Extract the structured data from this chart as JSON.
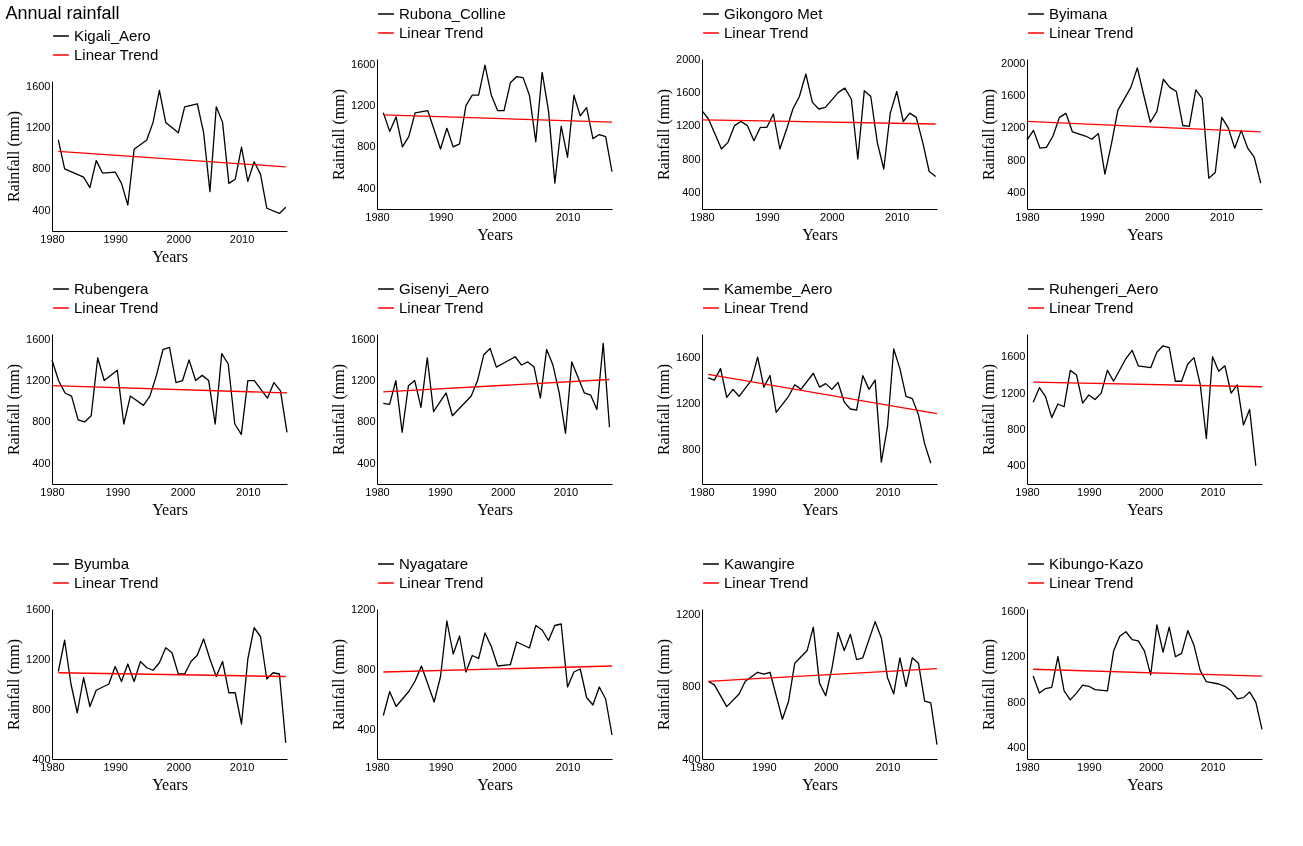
{
  "chart_data": [
    {
      "type": "line",
      "title": "Annual rainfall",
      "xlabel": "Years",
      "ylabel": "Rainfall (mm)",
      "xlim": [
        1980,
        2017.2
      ],
      "xticks": [
        1980,
        1990,
        2000,
        2010
      ],
      "ylim": [
        200,
        1650
      ],
      "yticks": [
        400,
        800,
        1200,
        1600
      ],
      "legend": "top",
      "series": [
        {
          "name": "Kigali_Aero",
          "color": "#000000",
          "x": [
            1981,
            1982,
            1985,
            1986,
            1987,
            1988,
            1990,
            1991,
            1992,
            1993,
            1995,
            1996,
            1997,
            1998,
            2000,
            2001,
            2003,
            2004,
            2005,
            2006,
            2007,
            2008,
            2009,
            2010,
            2011,
            2012,
            2013,
            2014,
            2016,
            2017
          ],
          "values": [
            1080,
            800,
            720,
            620,
            880,
            760,
            770,
            660,
            450,
            990,
            1080,
            1250,
            1560,
            1250,
            1150,
            1400,
            1430,
            1150,
            580,
            1400,
            1250,
            660,
            700,
            1010,
            680,
            870,
            750,
            420,
            370,
            430
          ]
        },
        {
          "name": "Linear Trend",
          "color": "#ff0000",
          "x": [
            1981,
            2017
          ],
          "values": [
            970,
            820
          ]
        }
      ]
    },
    {
      "type": "line",
      "xlabel": "Years",
      "ylabel": "Rainfall (mm)",
      "xlim": [
        1980,
        2017
      ],
      "xticks": [
        1980,
        1990,
        2000,
        2010
      ],
      "ylim": [
        200,
        1650
      ],
      "yticks": [
        400,
        800,
        1200,
        1600
      ],
      "legend": "top",
      "series": [
        {
          "name": "Rubona_Colline",
          "color": "#000000",
          "x": [
            1981,
            1982,
            1983,
            1984,
            1985,
            1986,
            1988,
            1990,
            1991,
            1992,
            1993,
            1994,
            1995,
            1996,
            1997,
            1998,
            1999,
            2000,
            2001,
            2002,
            2003,
            2004,
            2005,
            2006,
            2007,
            2008,
            2009,
            2010,
            2011,
            2012,
            2013,
            2014,
            2015,
            2016,
            2017
          ],
          "values": [
            1130,
            950,
            1090,
            800,
            900,
            1130,
            1150,
            780,
            980,
            800,
            830,
            1200,
            1300,
            1300,
            1590,
            1300,
            1150,
            1150,
            1420,
            1480,
            1470,
            1300,
            850,
            1520,
            1150,
            450,
            1000,
            700,
            1300,
            1100,
            1180,
            880,
            920,
            900,
            560
          ]
        },
        {
          "name": "Linear Trend",
          "color": "#ff0000",
          "x": [
            1981,
            2017
          ],
          "values": [
            1110,
            1040
          ]
        }
      ]
    },
    {
      "type": "line",
      "xlabel": "Years",
      "ylabel": "Rainfall (mm)",
      "xlim": [
        1980,
        2016.2
      ],
      "xticks": [
        1980,
        1990,
        2000,
        2010
      ],
      "ylim": [
        200,
        2000
      ],
      "yticks": [
        400,
        800,
        1200,
        1600,
        2000
      ],
      "legend": "top",
      "series": [
        {
          "name": "Gikongoro Met",
          "color": "#000000",
          "x": [
            1980,
            1981,
            1983,
            1984,
            1985,
            1986,
            1987,
            1988,
            1989,
            1990,
            1991,
            1992,
            1993,
            1994,
            1995,
            1996,
            1997,
            1998,
            1999,
            2001,
            2002,
            2003,
            2004,
            2005,
            2006,
            2007,
            2008,
            2009,
            2010,
            2011,
            2012,
            2013,
            2014,
            2015,
            2016
          ],
          "values": [
            1380,
            1280,
            920,
            1000,
            1200,
            1250,
            1200,
            1020,
            1180,
            1180,
            1340,
            920,
            1150,
            1400,
            1550,
            1820,
            1480,
            1400,
            1420,
            1600,
            1650,
            1520,
            800,
            1620,
            1550,
            1000,
            680,
            1350,
            1610,
            1250,
            1350,
            1300,
            1000,
            650,
            590
          ]
        },
        {
          "name": "Linear Trend",
          "color": "#ff0000",
          "x": [
            1980,
            2016
          ],
          "values": [
            1270,
            1220
          ]
        }
      ]
    },
    {
      "type": "line",
      "xlabel": "Years",
      "ylabel": "Rainfall (mm)",
      "xlim": [
        1980,
        2016.2
      ],
      "xticks": [
        1980,
        1990,
        2000,
        2010
      ],
      "ylim": [
        200,
        2050
      ],
      "yticks": [
        400,
        800,
        1200,
        1600,
        2000
      ],
      "legend": "top",
      "series": [
        {
          "name": "Byimana",
          "color": "#000000",
          "x": [
            1980,
            1981,
            1982,
            1983,
            1984,
            1985,
            1986,
            1987,
            1989,
            1990,
            1991,
            1992,
            1993,
            1994,
            1996,
            1997,
            1998,
            1999,
            2000,
            2001,
            2002,
            2003,
            2004,
            2005,
            2006,
            2007,
            2008,
            2009,
            2010,
            2011,
            2012,
            2013,
            2014,
            2015,
            2016
          ],
          "values": [
            1050,
            1170,
            950,
            960,
            1100,
            1330,
            1380,
            1150,
            1100,
            1060,
            1130,
            630,
            1000,
            1420,
            1700,
            1940,
            1600,
            1270,
            1400,
            1800,
            1700,
            1650,
            1230,
            1220,
            1670,
            1560,
            580,
            650,
            1330,
            1200,
            950,
            1170,
            950,
            840,
            520
          ]
        },
        {
          "name": "Linear Trend",
          "color": "#ff0000",
          "x": [
            1980,
            2016
          ],
          "values": [
            1280,
            1150
          ]
        }
      ]
    },
    {
      "type": "line",
      "xlabel": "Years",
      "ylabel": "Rainfall (mm)",
      "xlim": [
        1980,
        2016
      ],
      "xticks": [
        1980,
        1990,
        2000,
        2010
      ],
      "ylim": [
        200,
        1650
      ],
      "yticks": [
        400,
        800,
        1200,
        1600
      ],
      "legend": "top",
      "series": [
        {
          "name": "Rubengera",
          "color": "#000000",
          "x": [
            1980,
            1981,
            1982,
            1983,
            1984,
            1985,
            1986,
            1987,
            1988,
            1990,
            1991,
            1992,
            1994,
            1995,
            1996,
            1997,
            1998,
            1999,
            2000,
            2001,
            2002,
            2003,
            2004,
            2005,
            2006,
            2007,
            2008,
            2009,
            2010,
            2011,
            2013,
            2014,
            2015,
            2016
          ],
          "values": [
            1400,
            1200,
            1080,
            1050,
            820,
            800,
            860,
            1420,
            1200,
            1300,
            780,
            1050,
            960,
            1050,
            1250,
            1500,
            1520,
            1180,
            1200,
            1400,
            1200,
            1250,
            1200,
            780,
            1460,
            1360,
            780,
            680,
            1200,
            1200,
            1030,
            1180,
            1100,
            700
          ]
        },
        {
          "name": "Linear Trend",
          "color": "#ff0000",
          "x": [
            1980,
            2016
          ],
          "values": [
            1150,
            1080
          ]
        }
      ]
    },
    {
      "type": "line",
      "xlabel": "Years",
      "ylabel": "Rainfall (mm)",
      "xlim": [
        1980,
        2017.4
      ],
      "xticks": [
        1980,
        1990,
        2000,
        2010
      ],
      "ylim": [
        200,
        1650
      ],
      "yticks": [
        400,
        800,
        1200,
        1600
      ],
      "legend": "top",
      "series": [
        {
          "name": "Gisenyi_Aero",
          "color": "#000000",
          "x": [
            1981,
            1982,
            1983,
            1984,
            1985,
            1986,
            1987,
            1988,
            1989,
            1991,
            1992,
            1995,
            1996,
            1997,
            1998,
            1999,
            2002,
            2003,
            2004,
            2005,
            2006,
            2007,
            2008,
            2009,
            2010,
            2011,
            2012,
            2013,
            2014,
            2015,
            2016,
            2017
          ],
          "values": [
            980,
            970,
            1200,
            700,
            1150,
            1200,
            940,
            1420,
            900,
            1080,
            860,
            1050,
            1200,
            1450,
            1510,
            1330,
            1430,
            1350,
            1380,
            1330,
            1030,
            1500,
            1350,
            1080,
            690,
            1380,
            1230,
            1080,
            1060,
            920,
            1560,
            750
          ]
        },
        {
          "name": "Linear Trend",
          "color": "#ff0000",
          "x": [
            1981,
            2017
          ],
          "values": [
            1090,
            1210
          ]
        }
      ]
    },
    {
      "type": "line",
      "xlabel": "Years",
      "ylabel": "Rainfall (mm)",
      "xlim": [
        1980,
        2018
      ],
      "xticks": [
        1980,
        1990,
        2000,
        2010
      ],
      "ylim": [
        500,
        1800
      ],
      "yticks": [
        800,
        1200,
        1600
      ],
      "legend": "top",
      "series": [
        {
          "name": "Kamembe_Aero",
          "color": "#000000",
          "x": [
            1981,
            1982,
            1983,
            1984,
            1985,
            1986,
            1988,
            1989,
            1990,
            1991,
            1992,
            1994,
            1995,
            1996,
            1998,
            1999,
            2000,
            2001,
            2002,
            2003,
            2004,
            2005,
            2006,
            2007,
            2008,
            2009,
            2010,
            2011,
            2012,
            2013,
            2014,
            2015,
            2016,
            2017
          ],
          "values": [
            1420,
            1400,
            1500,
            1250,
            1320,
            1260,
            1400,
            1600,
            1340,
            1440,
            1120,
            1260,
            1360,
            1320,
            1460,
            1340,
            1370,
            1320,
            1380,
            1210,
            1150,
            1140,
            1440,
            1320,
            1400,
            690,
            1000,
            1670,
            1500,
            1260,
            1240,
            1100,
            850,
            680
          ]
        },
        {
          "name": "Linear Trend",
          "color": "#ff0000",
          "x": [
            1981,
            2018
          ],
          "values": [
            1450,
            1110
          ]
        }
      ]
    },
    {
      "type": "line",
      "xlabel": "Years",
      "ylabel": "Rainfall (mm)",
      "xlim": [
        1980,
        2018
      ],
      "xticks": [
        1980,
        1990,
        2000,
        2010
      ],
      "ylim": [
        200,
        1850
      ],
      "yticks": [
        400,
        800,
        1200,
        1600
      ],
      "legend": "top",
      "series": [
        {
          "name": "Ruhengeri_Aero",
          "color": "#000000",
          "x": [
            1981,
            1982,
            1983,
            1984,
            1985,
            1986,
            1987,
            1988,
            1989,
            1990,
            1991,
            1992,
            1993,
            1994,
            1996,
            1997,
            1998,
            2000,
            2001,
            2002,
            2003,
            2004,
            2005,
            2006,
            2007,
            2008,
            2009,
            2010,
            2011,
            2012,
            2013,
            2014,
            2015,
            2016,
            2017
          ],
          "values": [
            1100,
            1260,
            1160,
            930,
            1080,
            1050,
            1450,
            1400,
            1090,
            1180,
            1130,
            1200,
            1450,
            1330,
            1580,
            1670,
            1500,
            1480,
            1650,
            1720,
            1700,
            1330,
            1330,
            1520,
            1590,
            1300,
            700,
            1600,
            1440,
            1500,
            1200,
            1290,
            850,
            1020,
            400
          ]
        },
        {
          "name": "Linear Trend",
          "color": "#ff0000",
          "x": [
            1981,
            2018
          ],
          "values": [
            1320,
            1270
          ]
        }
      ]
    },
    {
      "type": "line",
      "xlabel": "Years",
      "ylabel": "Rainfall (mm)",
      "xlim": [
        1980,
        2017.2
      ],
      "xticks": [
        1980,
        1990,
        2000,
        2010
      ],
      "ylim": [
        400,
        1600
      ],
      "yticks": [
        400,
        800,
        1200,
        1600
      ],
      "legend": "top",
      "series": [
        {
          "name": "Byumba",
          "color": "#000000",
          "x": [
            1981,
            1982,
            1983,
            1984,
            1985,
            1986,
            1987,
            1989,
            1990,
            1991,
            1992,
            1993,
            1994,
            1995,
            1996,
            1997,
            1998,
            1999,
            2000,
            2001,
            2002,
            2003,
            2004,
            2005,
            2006,
            2007,
            2008,
            2009,
            2010,
            2011,
            2012,
            2013,
            2014,
            2015,
            2016,
            2017
          ],
          "values": [
            1100,
            1350,
            1000,
            770,
            1050,
            820,
            950,
            1000,
            1140,
            1020,
            1160,
            1020,
            1180,
            1130,
            1110,
            1170,
            1290,
            1250,
            1080,
            1080,
            1180,
            1230,
            1360,
            1200,
            1060,
            1180,
            930,
            930,
            680,
            1200,
            1450,
            1380,
            1040,
            1090,
            1080,
            530
          ]
        },
        {
          "name": "Linear Trend",
          "color": "#ff0000",
          "x": [
            1981,
            2017
          ],
          "values": [
            1090,
            1060
          ]
        }
      ]
    },
    {
      "type": "line",
      "xlabel": "Years",
      "ylabel": "Rainfall (mm)",
      "xlim": [
        1980,
        2017
      ],
      "xticks": [
        1980,
        1990,
        2000,
        2010
      ],
      "ylim": [
        200,
        1200
      ],
      "yticks": [
        400,
        800,
        1200
      ],
      "legend": "top",
      "series": [
        {
          "name": "Nyagatare",
          "color": "#000000",
          "x": [
            1981,
            1982,
            1983,
            1985,
            1986,
            1987,
            1988,
            1989,
            1990,
            1991,
            1992,
            1993,
            1994,
            1995,
            1996,
            1997,
            1998,
            1999,
            2001,
            2002,
            2004,
            2005,
            2006,
            2007,
            2008,
            2009,
            2010,
            2011,
            2012,
            2013,
            2014,
            2015,
            2016,
            2017
          ],
          "values": [
            490,
            650,
            550,
            650,
            720,
            820,
            700,
            580,
            750,
            1120,
            900,
            1020,
            780,
            890,
            870,
            1040,
            950,
            820,
            830,
            980,
            940,
            1090,
            1060,
            990,
            1090,
            1100,
            680,
            780,
            800,
            610,
            560,
            680,
            600,
            360
          ]
        },
        {
          "name": "Linear Trend",
          "color": "#ff0000",
          "x": [
            1981,
            2017
          ],
          "values": [
            780,
            820
          ]
        }
      ]
    },
    {
      "type": "line",
      "xlabel": "Years",
      "ylabel": "Rainfall (mm)",
      "xlim": [
        1980,
        2018
      ],
      "xticks": [
        1980,
        1990,
        2000,
        2010
      ],
      "ylim": [
        400,
        1230
      ],
      "yticks": [
        400,
        800,
        1200
      ],
      "legend": "top",
      "series": [
        {
          "name": "Kawangire",
          "color": "#000000",
          "x": [
            1981,
            1982,
            1984,
            1986,
            1987,
            1989,
            1990,
            1991,
            1993,
            1994,
            1995,
            1997,
            1998,
            1999,
            2000,
            2001,
            2002,
            2003,
            2004,
            2005,
            2006,
            2008,
            2009,
            2010,
            2011,
            2012,
            2013,
            2014,
            2015,
            2016,
            2017,
            2018
          ],
          "values": [
            830,
            810,
            690,
            760,
            830,
            880,
            870,
            880,
            620,
            720,
            930,
            1000,
            1130,
            820,
            750,
            900,
            1100,
            1000,
            1090,
            950,
            960,
            1160,
            1070,
            850,
            760,
            960,
            800,
            960,
            930,
            720,
            710,
            480
          ]
        },
        {
          "name": "Linear Trend",
          "color": "#ff0000",
          "x": [
            1981,
            2018
          ],
          "values": [
            830,
            900
          ]
        }
      ]
    },
    {
      "type": "line",
      "xlabel": "Years",
      "ylabel": "Rainfall (mm)",
      "xlim": [
        1980,
        2018
      ],
      "xticks": [
        1980,
        1990,
        2000,
        2010
      ],
      "ylim": [
        300,
        1620
      ],
      "yticks": [
        400,
        800,
        1200,
        1600
      ],
      "legend": "top",
      "series": [
        {
          "name": "Kibungo-Kazo",
          "color": "#000000",
          "x": [
            1981,
            1982,
            1983,
            1984,
            1985,
            1986,
            1987,
            1988,
            1989,
            1990,
            1991,
            1993,
            1994,
            1995,
            1996,
            1997,
            1998,
            1999,
            2000,
            2001,
            2002,
            2003,
            2004,
            2005,
            2006,
            2007,
            2008,
            2009,
            2011,
            2012,
            2013,
            2014,
            2015,
            2016,
            2017,
            2018
          ],
          "values": [
            1030,
            880,
            920,
            930,
            1200,
            900,
            820,
            880,
            950,
            940,
            910,
            900,
            1250,
            1380,
            1420,
            1350,
            1340,
            1250,
            1040,
            1480,
            1240,
            1460,
            1200,
            1230,
            1430,
            1300,
            1080,
            980,
            960,
            940,
            900,
            830,
            840,
            890,
            800,
            560
          ]
        },
        {
          "name": "Linear Trend",
          "color": "#ff0000",
          "x": [
            1981,
            2018
          ],
          "values": [
            1090,
            1030
          ]
        }
      ]
    }
  ]
}
